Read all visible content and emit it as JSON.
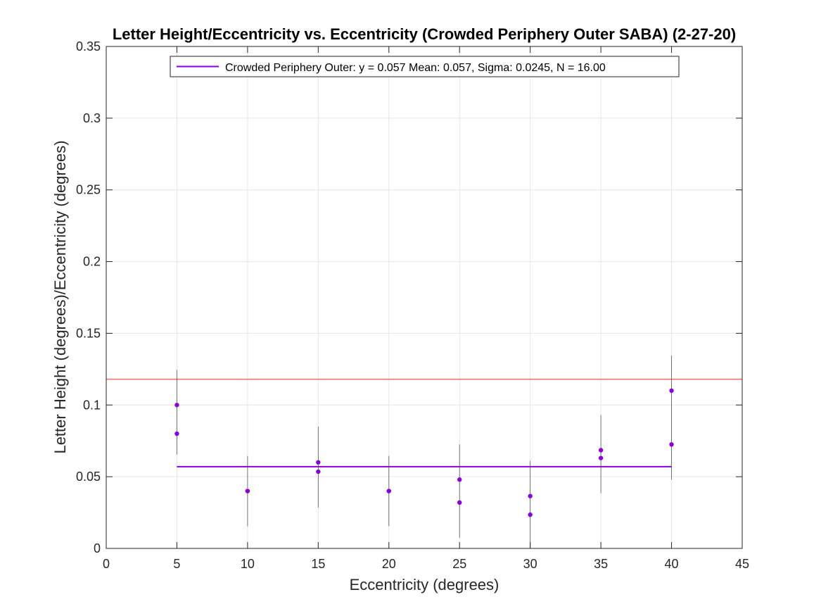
{
  "chart_data": {
    "type": "scatter",
    "title": "Letter Height/Eccentricity vs. Eccentricity (Crowded Periphery Outer SABA) (2-27-20)",
    "xlabel": "Eccentricity (degrees)",
    "ylabel": "Letter Height (degrees)/Eccentricity (degrees)",
    "xlim": [
      0,
      45
    ],
    "ylim": [
      0,
      0.35
    ],
    "x_ticks": [
      0,
      5,
      10,
      15,
      20,
      25,
      30,
      35,
      40,
      45
    ],
    "x_tick_labels": [
      "0",
      "5",
      "10",
      "15",
      "20",
      "25",
      "30",
      "35",
      "40",
      "45"
    ],
    "y_ticks": [
      0,
      0.05,
      0.1,
      0.15,
      0.2,
      0.25,
      0.3,
      0.35
    ],
    "y_tick_labels": [
      "0",
      "0.05",
      "0.1",
      "0.15",
      "0.2",
      "0.25",
      "0.3",
      "0.35"
    ],
    "grid": true,
    "legend": {
      "placement": "top-center",
      "entries": [
        "Crowded Periphery Outer: y = 0.057 Mean: 0.057, Sigma: 0.0245, N = 16.00"
      ]
    },
    "series": [
      {
        "kind": "points",
        "color": "#8a00e6",
        "x": [
          5,
          5,
          10,
          10,
          15,
          15,
          20,
          20,
          25,
          25,
          30,
          30,
          35,
          35,
          40,
          40
        ],
        "y": [
          0.1,
          0.08,
          0.04,
          0.04,
          0.06,
          0.0535,
          0.04,
          0.04,
          0.048,
          0.032,
          0.0365,
          0.0235,
          0.0685,
          0.063,
          0.11,
          0.0725
        ]
      },
      {
        "kind": "error_bars",
        "color": "#555555",
        "x": [
          5,
          10,
          15,
          20,
          25,
          30,
          35,
          40
        ],
        "low": [
          0.0655,
          0.0155,
          0.0285,
          0.0155,
          0.0075,
          0.0,
          0.0385,
          0.048
        ],
        "high": [
          0.1245,
          0.0645,
          0.085,
          0.0645,
          0.0725,
          0.061,
          0.093,
          0.1345
        ]
      },
      {
        "kind": "hline",
        "name": "Crowded Periphery Outer: y = 0.057 Mean: 0.057, Sigma: 0.0245, N = 16.00",
        "color": "#8a00e6",
        "y": 0.057,
        "x_range": [
          5,
          40
        ]
      },
      {
        "kind": "hline",
        "color": "#ff6a6a",
        "y": 0.118,
        "x_range": [
          0,
          45
        ]
      }
    ]
  }
}
